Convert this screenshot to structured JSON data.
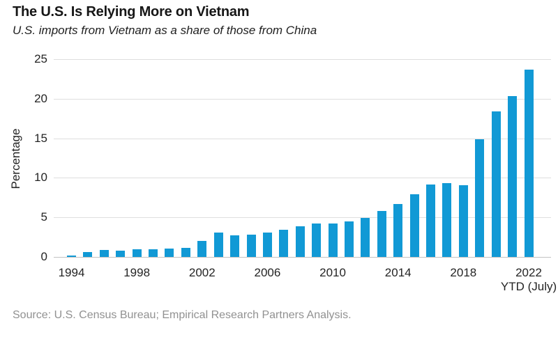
{
  "header": {
    "title": "The U.S. Is Relying More on Vietnam",
    "subtitle": "U.S. imports from Vietnam as a share of those from China"
  },
  "chart_data": {
    "type": "bar",
    "title": "The U.S. Is Relying More on Vietnam",
    "subtitle": "U.S. imports from Vietnam as a share of those from China",
    "ylabel": "Percentage",
    "xlabel": "",
    "ylim": [
      0,
      25
    ],
    "yticks": [
      0,
      5,
      10,
      15,
      20,
      25
    ],
    "grid": "horizontal",
    "legend": "none",
    "bar_color": "#1199d5",
    "categories": [
      "1994",
      "1995",
      "1996",
      "1997",
      "1998",
      "1999",
      "2000",
      "2001",
      "2002",
      "2003",
      "2004",
      "2005",
      "2006",
      "2007",
      "2008",
      "2009",
      "2010",
      "2011",
      "2012",
      "2013",
      "2014",
      "2015",
      "2016",
      "2017",
      "2018",
      "2019",
      "2020",
      "2021",
      "2022 YTD (July)"
    ],
    "values": [
      0.2,
      0.65,
      0.9,
      0.8,
      0.95,
      1.0,
      1.05,
      1.15,
      2.05,
      3.1,
      2.75,
      2.85,
      3.1,
      3.4,
      3.9,
      4.2,
      4.25,
      4.45,
      4.9,
      5.8,
      6.7,
      7.9,
      9.2,
      9.3,
      9.1,
      14.9,
      18.4,
      20.3,
      23.7
    ],
    "xticks_shown": [
      "1994",
      "1998",
      "2002",
      "2006",
      "2010",
      "2014",
      "2018",
      "2022"
    ],
    "xtick_note": "YTD (July)"
  },
  "source": {
    "label": "Source: U.S. Census Bureau; Empirical Research Partners Analysis."
  }
}
